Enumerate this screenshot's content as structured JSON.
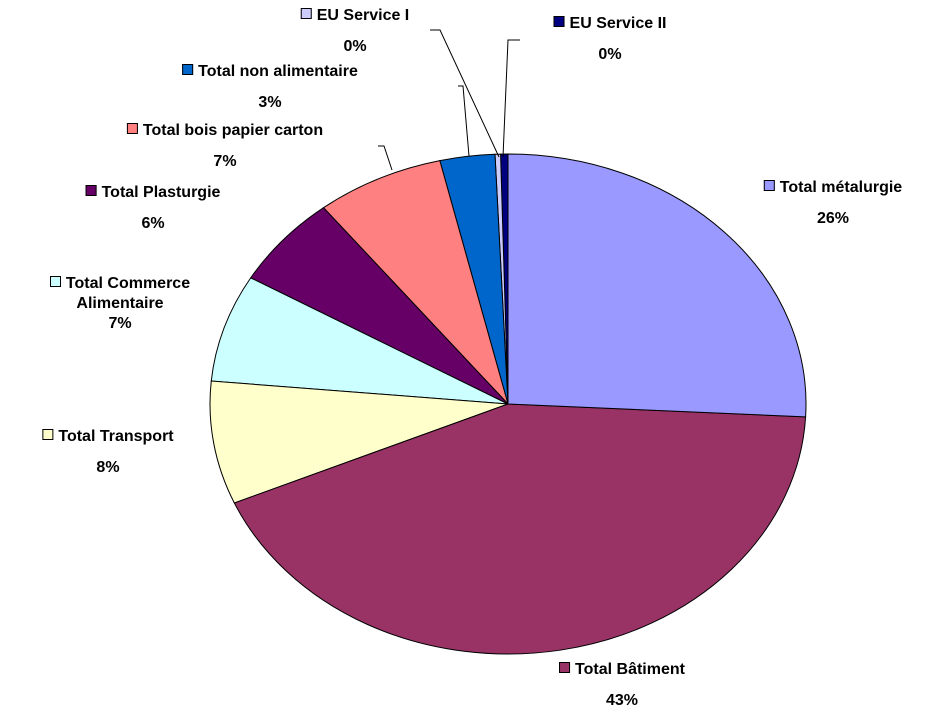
{
  "chart_data": {
    "type": "pie",
    "categories": [
      "Total métalurgie",
      "Total Bâtiment",
      "Total Transport",
      "Total Commerce Alimentaire",
      "Total Plasturgie",
      "Total bois papier carton",
      "Total non alimentaire",
      "EU Service I",
      "EU Service II"
    ],
    "values": [
      26,
      43,
      8,
      7,
      6,
      7,
      3,
      0.3,
      0.4
    ],
    "value_labels": [
      "26%",
      "43%",
      "8%",
      "7%",
      "6%",
      "7%",
      "3%",
      "0%",
      "0%"
    ],
    "colors": [
      "#9999ff",
      "#993366",
      "#ffffcc",
      "#ccffff",
      "#660066",
      "#ff8080",
      "#0066cc",
      "#ccccff",
      "#000080"
    ]
  }
}
